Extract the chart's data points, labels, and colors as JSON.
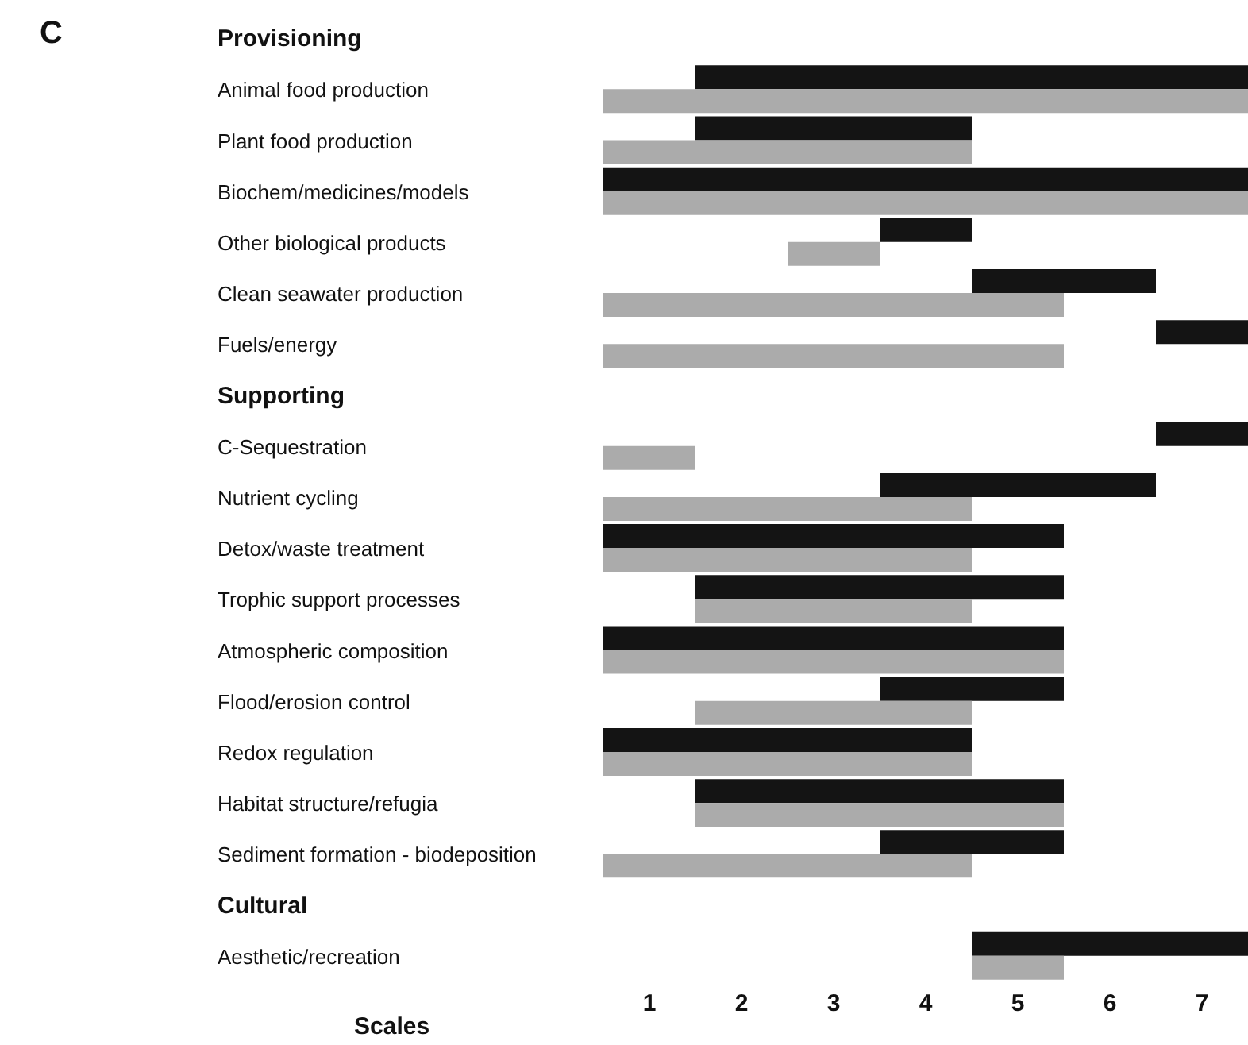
{
  "chart_data": {
    "type": "bar",
    "orientation": "horizontal",
    "xlabel": "Scales",
    "annotations": [
      "C"
    ],
    "categories": [
      "Provisioning",
      "Animal food production",
      "Plant food production",
      "Biochem/medicines/models",
      "Other biological products",
      "Clean seawater production",
      "Fuels/energy",
      "Supporting",
      "C-Sequestration",
      "Nutrient cycling",
      "Detox/waste treatment",
      "Trophic support processes",
      "Atmospheric composition",
      "Flood/erosion control",
      "Redox regulation",
      "Habitat structure/refugia",
      "Sediment formation - biodeposition",
      "Cultural",
      "Aesthetic/recreation"
    ],
    "series": [
      {
        "color": "#141414",
        "base": [
          null,
          1.5,
          1.5,
          0.5,
          3.5,
          4.5,
          6.5,
          null,
          6.5,
          3.5,
          0.5,
          1.5,
          0.5,
          3.5,
          0.5,
          1.5,
          3.5,
          null,
          4.5
        ],
        "values": [
          null,
          6,
          3,
          7,
          1,
          2,
          1,
          null,
          1,
          3,
          5,
          4,
          5,
          2,
          4,
          4,
          2,
          null,
          3
        ]
      },
      {
        "color": "#ababab",
        "base": [
          null,
          0.5,
          0.5,
          0.5,
          2.5,
          0.5,
          0.5,
          null,
          0.5,
          0.5,
          0.5,
          1.5,
          0.5,
          1.5,
          0.5,
          1.5,
          0.5,
          null,
          4.5
        ],
        "values": [
          null,
          7,
          4,
          7,
          1,
          5,
          5,
          null,
          1,
          4,
          4,
          3,
          5,
          3,
          4,
          4,
          4,
          null,
          1
        ]
      }
    ],
    "xlim": [
      0.5,
      7.5
    ],
    "xticks": [
      1,
      2,
      3,
      4,
      5,
      6,
      7
    ],
    "grid": false,
    "legend": false
  }
}
